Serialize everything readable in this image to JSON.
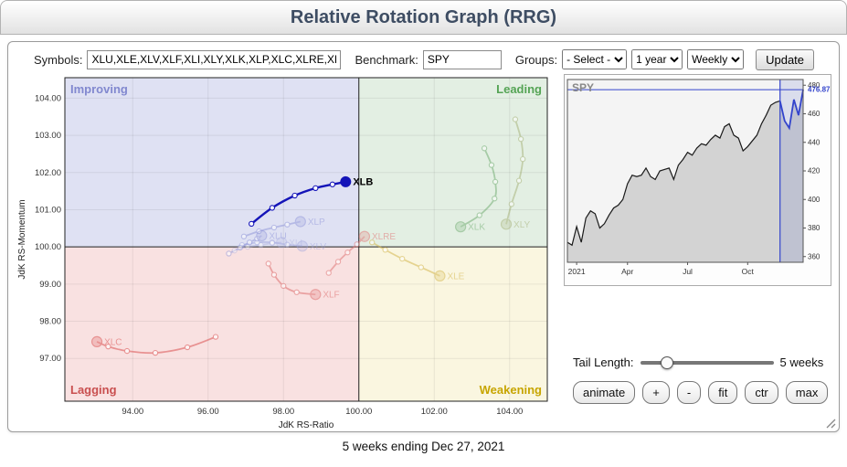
{
  "header": {
    "title": "Relative Rotation Graph (RRG)"
  },
  "toolbar": {
    "symbols_label": "Symbols:",
    "symbols_value": "XLU,XLE,XLV,XLF,XLI,XLY,XLK,XLP,XLC,XLRE,XL",
    "benchmark_label": "Benchmark:",
    "benchmark_value": "SPY",
    "groups_label": "Groups:",
    "groups_value": "- Select -",
    "period_value": "1 year",
    "frequency_value": "Weekly",
    "update_label": "Update"
  },
  "rrg_chart": {
    "type": "scatter",
    "xlabel": "JdK RS-Ratio",
    "ylabel": "JdK RS-Momentum",
    "x_ticks": [
      94,
      96,
      98,
      100,
      102,
      104
    ],
    "y_ticks": [
      97,
      98,
      99,
      100,
      101,
      102,
      103,
      104
    ],
    "x_range": [
      92.2,
      105.0
    ],
    "y_range": [
      95.85,
      104.55
    ],
    "quadrants": {
      "top_left": {
        "label": "Improving",
        "color": "#8188cf",
        "bg": "#dfe1f3"
      },
      "top_right": {
        "label": "Leading",
        "color": "#55a455",
        "bg": "#e3efe3"
      },
      "bottom_left": {
        "label": "Lagging",
        "color": "#c94f4f",
        "bg": "#f9e1e1"
      },
      "bottom_right": {
        "label": "Weakening",
        "color": "#c7a500",
        "bg": "#faf6e0"
      }
    },
    "selected_symbol": "XLB",
    "series": [
      {
        "name": "XLB",
        "color": "#1414b8",
        "label_color": "#000000",
        "opacity": 1,
        "points": [
          [
            97.15,
            100.62
          ],
          [
            97.7,
            101.05
          ],
          [
            98.3,
            101.38
          ],
          [
            98.85,
            101.58
          ],
          [
            99.3,
            101.68
          ],
          [
            99.65,
            101.75
          ]
        ]
      },
      {
        "name": "XLP",
        "color": "#8c92d8",
        "opacity": 0.5,
        "points": [
          [
            96.95,
            100.28
          ],
          [
            97.35,
            100.42
          ],
          [
            97.75,
            100.52
          ],
          [
            98.1,
            100.6
          ],
          [
            98.45,
            100.68
          ]
        ]
      },
      {
        "name": "XLV",
        "color": "#9aa0dc",
        "opacity": 0.45,
        "points": [
          [
            96.9,
            100.05
          ],
          [
            97.3,
            100.12
          ],
          [
            97.7,
            100.12
          ],
          [
            98.1,
            100.06
          ],
          [
            98.5,
            100.02
          ]
        ]
      },
      {
        "name": "XLU",
        "color": "#8c92d8",
        "opacity": 0.5,
        "points": [
          [
            96.55,
            99.82
          ],
          [
            96.85,
            99.98
          ],
          [
            97.1,
            100.12
          ],
          [
            97.3,
            100.22
          ],
          [
            97.42,
            100.3
          ]
        ]
      },
      {
        "name": "XLI",
        "color": "#a8acdf",
        "opacity": 0.4,
        "points": [
          [
            96.7,
            99.9
          ],
          [
            97.05,
            100.0
          ],
          [
            97.4,
            100.05
          ],
          [
            97.7,
            100.1
          ],
          [
            97.95,
            100.12
          ]
        ]
      },
      {
        "name": "XLRE",
        "color": "#e07878",
        "opacity": 0.55,
        "points": [
          [
            99.2,
            99.3
          ],
          [
            99.45,
            99.6
          ],
          [
            99.7,
            99.85
          ],
          [
            99.95,
            100.07
          ],
          [
            100.15,
            100.28
          ]
        ]
      },
      {
        "name": "XLK",
        "color": "#6aa86a",
        "opacity": 0.5,
        "points": [
          [
            103.33,
            102.65
          ],
          [
            103.52,
            102.2
          ],
          [
            103.62,
            101.75
          ],
          [
            103.6,
            101.3
          ],
          [
            103.2,
            100.85
          ],
          [
            102.7,
            100.54
          ]
        ]
      },
      {
        "name": "XLY",
        "color": "#a3af72",
        "opacity": 0.5,
        "points": [
          [
            104.15,
            103.43
          ],
          [
            104.3,
            102.9
          ],
          [
            104.35,
            102.36
          ],
          [
            104.25,
            101.78
          ],
          [
            104.05,
            101.15
          ],
          [
            103.91,
            100.61
          ]
        ]
      },
      {
        "name": "XLE",
        "color": "#d4b850",
        "opacity": 0.55,
        "points": [
          [
            100.35,
            100.12
          ],
          [
            100.7,
            99.92
          ],
          [
            101.15,
            99.68
          ],
          [
            101.65,
            99.45
          ],
          [
            102.15,
            99.22
          ]
        ]
      },
      {
        "name": "XLF",
        "color": "#e07878",
        "opacity": 0.6,
        "points": [
          [
            97.6,
            99.55
          ],
          [
            97.75,
            99.25
          ],
          [
            98.0,
            98.95
          ],
          [
            98.35,
            98.78
          ],
          [
            98.85,
            98.72
          ]
        ]
      },
      {
        "name": "XLC",
        "color": "#e06868",
        "opacity": 0.65,
        "points": [
          [
            96.2,
            97.58
          ],
          [
            95.45,
            97.3
          ],
          [
            94.6,
            97.15
          ],
          [
            93.85,
            97.2
          ],
          [
            93.35,
            97.32
          ],
          [
            93.05,
            97.45
          ]
        ]
      }
    ]
  },
  "spy_chart": {
    "type": "area",
    "title": "SPY",
    "last_price": "476.87",
    "accent_color": "#3344cc",
    "y_ticks": [
      360,
      380,
      400,
      420,
      440,
      460,
      480
    ],
    "y_domain": [
      356,
      484
    ],
    "x_ticks": [
      {
        "label": "2021",
        "week": 2
      },
      {
        "label": "Apr",
        "week": 13
      },
      {
        "label": "Jul",
        "week": 26
      },
      {
        "label": "Oct",
        "week": 39
      }
    ],
    "tail_weeks": 5,
    "values": [
      370,
      368,
      381,
      370,
      387,
      392,
      390,
      380,
      383,
      389,
      394,
      396,
      400,
      411,
      417,
      416,
      417,
      422,
      416,
      414,
      420,
      421,
      422,
      414,
      424,
      428,
      433,
      431,
      436,
      439,
      438,
      442,
      445,
      443,
      451,
      453,
      445,
      443,
      434,
      437,
      441,
      445,
      453,
      459,
      466,
      468,
      469,
      455,
      450,
      470,
      459,
      476.87
    ]
  },
  "controls": {
    "tail_label": "Tail Length:",
    "tail_length": 5,
    "tail_value_text": "5 weeks",
    "buttons": [
      "animate",
      "+",
      "-",
      "fit",
      "ctr",
      "max"
    ]
  },
  "footer": {
    "caption": "5 weeks ending Dec 27, 2021"
  }
}
